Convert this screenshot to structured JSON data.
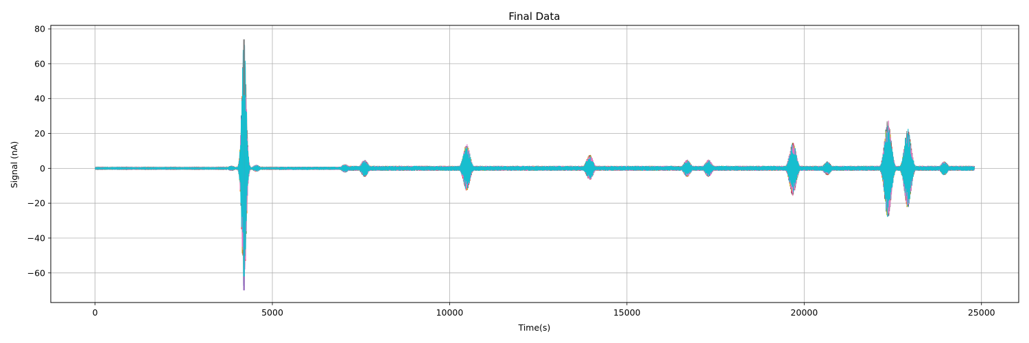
{
  "chart_data": {
    "type": "line",
    "title": "Final Data",
    "xlabel": "Time(s)",
    "ylabel": "Signal (nA)",
    "xlim": [
      -1250,
      26050
    ],
    "ylim": [
      -77,
      82
    ],
    "xticks": [
      0,
      5000,
      10000,
      15000,
      20000,
      25000
    ],
    "xtick_labels": [
      "0",
      "5000",
      "10000",
      "15000",
      "20000",
      "25000"
    ],
    "yticks": [
      -60,
      -40,
      -20,
      0,
      20,
      40,
      60,
      80
    ],
    "ytick_labels": [
      "−60",
      "−40",
      "−20",
      "0",
      "20",
      "40",
      "60",
      "80"
    ],
    "grid": true,
    "legend": "none",
    "x_range": [
      0,
      24800
    ],
    "colors": [
      "#1f77b4",
      "#ff7f0e",
      "#2ca02c",
      "#d62728",
      "#9467bd",
      "#8c564b",
      "#e377c2",
      "#7f7f7f",
      "#bcbd22",
      "#17becf"
    ],
    "events": [
      {
        "t": 3850,
        "amp": 1.5,
        "series": "all"
      },
      {
        "t": 4200,
        "max": 74,
        "min": -70,
        "series": "spike"
      },
      {
        "t": 4550,
        "amp": 2,
        "series": "all"
      },
      {
        "t": 7050,
        "amp": 2.5,
        "series": "all"
      },
      {
        "t": 7600,
        "amp": 5,
        "series": "all"
      },
      {
        "t": 10480,
        "max": 14,
        "min": -13,
        "series": "all"
      },
      {
        "t": 13950,
        "max": 8,
        "min": -7,
        "series": "all"
      },
      {
        "t": 16700,
        "amp": 5,
        "series": "all"
      },
      {
        "t": 17300,
        "amp": 5,
        "series": "all"
      },
      {
        "t": 19680,
        "max": 15,
        "min": -16,
        "series": "all"
      },
      {
        "t": 20650,
        "amp": 4,
        "series": "all"
      },
      {
        "t": 22360,
        "max": 28,
        "min": -29,
        "series": "all"
      },
      {
        "t": 22920,
        "max": 23,
        "min": -23,
        "series": "all"
      },
      {
        "t": 23950,
        "amp": 4,
        "series": "all"
      }
    ]
  }
}
